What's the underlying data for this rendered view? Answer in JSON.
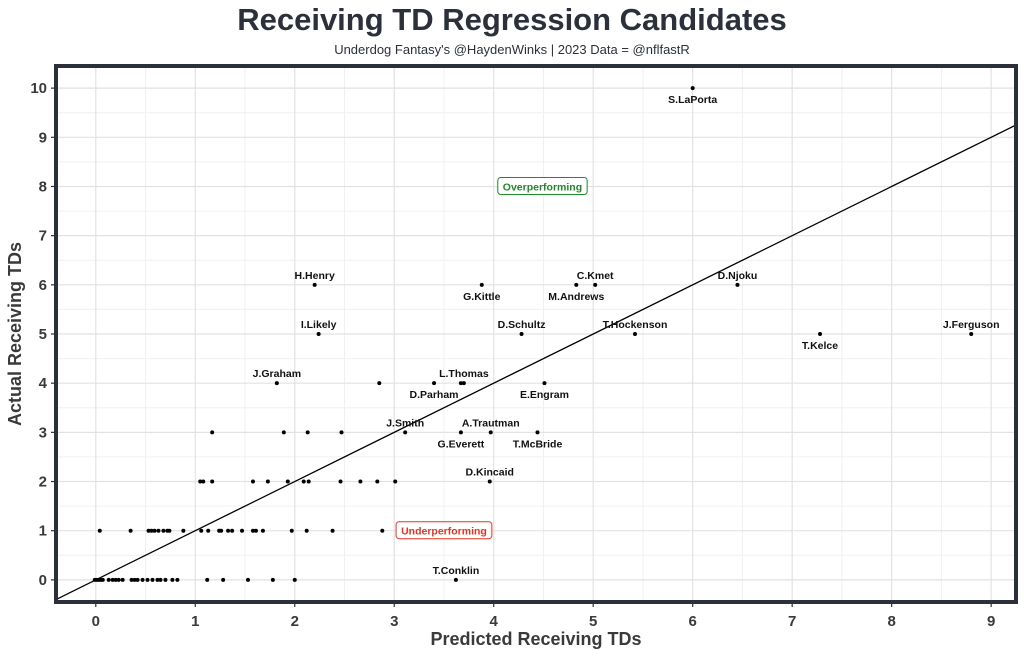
{
  "title": "Receiving TD Regression Candidates",
  "subtitle": "Underdog Fantasy's @HaydenWinks | 2023 Data = @nflfastR",
  "chart_data": {
    "type": "scatter",
    "xlabel": "Predicted Receiving TDs",
    "ylabel": "Actual Receiving TDs",
    "xlim": [
      -0.4,
      9.25
    ],
    "ylim": [
      -0.45,
      10.45
    ],
    "xticks": [
      "0",
      "1",
      "2",
      "3",
      "4",
      "5",
      "6",
      "7",
      "8",
      "9"
    ],
    "yticks": [
      "0",
      "1",
      "2",
      "3",
      "4",
      "5",
      "6",
      "7",
      "8",
      "9",
      "10"
    ],
    "grid": true,
    "reference_line": {
      "slope": 1,
      "intercept": 0
    },
    "labeled_points": [
      {
        "name": "S.LaPorta",
        "x": 6.0,
        "y": 10
      },
      {
        "name": "H.Henry",
        "x": 2.2,
        "y": 6
      },
      {
        "name": "G.Kittle",
        "x": 3.88,
        "y": 6
      },
      {
        "name": "M.Andrews",
        "x": 4.83,
        "y": 6
      },
      {
        "name": "C.Kmet",
        "x": 5.02,
        "y": 6
      },
      {
        "name": "D.Njoku",
        "x": 6.45,
        "y": 6
      },
      {
        "name": "I.Likely",
        "x": 2.24,
        "y": 5
      },
      {
        "name": "D.Schultz",
        "x": 4.28,
        "y": 5
      },
      {
        "name": "T.Hockenson",
        "x": 5.42,
        "y": 5
      },
      {
        "name": "T.Kelce",
        "x": 7.28,
        "y": 5
      },
      {
        "name": "J.Ferguson",
        "x": 8.8,
        "y": 5
      },
      {
        "name": "J.Graham",
        "x": 1.82,
        "y": 4
      },
      {
        "name": "D.Parham",
        "x": 3.4,
        "y": 4
      },
      {
        "name": "L.Thomas",
        "x": 3.7,
        "y": 4
      },
      {
        "name": "E.Engram",
        "x": 4.51,
        "y": 4
      },
      {
        "name": "J.Smith",
        "x": 3.11,
        "y": 3
      },
      {
        "name": "G.Everett",
        "x": 3.67,
        "y": 3
      },
      {
        "name": "A.Trautman",
        "x": 3.97,
        "y": 3
      },
      {
        "name": "T.McBride",
        "x": 4.44,
        "y": 3
      },
      {
        "name": "D.Kincaid",
        "x": 3.96,
        "y": 2
      },
      {
        "name": "T.Conklin",
        "x": 3.62,
        "y": 0
      }
    ],
    "points": [
      {
        "x": 2.85,
        "y": 4
      },
      {
        "x": 3.67,
        "y": 4
      },
      {
        "x": 1.17,
        "y": 3
      },
      {
        "x": 1.89,
        "y": 3
      },
      {
        "x": 2.13,
        "y": 3
      },
      {
        "x": 2.47,
        "y": 3
      },
      {
        "x": 1.05,
        "y": 2
      },
      {
        "x": 1.08,
        "y": 2
      },
      {
        "x": 1.17,
        "y": 2
      },
      {
        "x": 1.58,
        "y": 2
      },
      {
        "x": 1.73,
        "y": 2
      },
      {
        "x": 1.93,
        "y": 2
      },
      {
        "x": 2.09,
        "y": 2
      },
      {
        "x": 2.14,
        "y": 2
      },
      {
        "x": 2.46,
        "y": 2
      },
      {
        "x": 2.66,
        "y": 2
      },
      {
        "x": 2.83,
        "y": 2
      },
      {
        "x": 3.01,
        "y": 2
      },
      {
        "x": 0.04,
        "y": 1
      },
      {
        "x": 0.35,
        "y": 1
      },
      {
        "x": 0.53,
        "y": 1
      },
      {
        "x": 0.56,
        "y": 1
      },
      {
        "x": 0.59,
        "y": 1
      },
      {
        "x": 0.63,
        "y": 1
      },
      {
        "x": 0.68,
        "y": 1
      },
      {
        "x": 0.72,
        "y": 1
      },
      {
        "x": 0.74,
        "y": 1
      },
      {
        "x": 0.88,
        "y": 1
      },
      {
        "x": 1.06,
        "y": 1
      },
      {
        "x": 1.13,
        "y": 1
      },
      {
        "x": 1.24,
        "y": 1
      },
      {
        "x": 1.26,
        "y": 1
      },
      {
        "x": 1.33,
        "y": 1
      },
      {
        "x": 1.37,
        "y": 1
      },
      {
        "x": 1.47,
        "y": 1
      },
      {
        "x": 1.58,
        "y": 1
      },
      {
        "x": 1.61,
        "y": 1
      },
      {
        "x": 1.68,
        "y": 1
      },
      {
        "x": 1.97,
        "y": 1
      },
      {
        "x": 2.12,
        "y": 1
      },
      {
        "x": 2.38,
        "y": 1
      },
      {
        "x": 2.88,
        "y": 1
      },
      {
        "x": -0.01,
        "y": 0
      },
      {
        "x": 0.01,
        "y": 0
      },
      {
        "x": 0.03,
        "y": 0
      },
      {
        "x": 0.05,
        "y": 0
      },
      {
        "x": 0.07,
        "y": 0
      },
      {
        "x": 0.13,
        "y": 0
      },
      {
        "x": 0.17,
        "y": 0
      },
      {
        "x": 0.2,
        "y": 0
      },
      {
        "x": 0.23,
        "y": 0
      },
      {
        "x": 0.27,
        "y": 0
      },
      {
        "x": 0.36,
        "y": 0
      },
      {
        "x": 0.39,
        "y": 0
      },
      {
        "x": 0.42,
        "y": 0
      },
      {
        "x": 0.47,
        "y": 0
      },
      {
        "x": 0.52,
        "y": 0
      },
      {
        "x": 0.57,
        "y": 0
      },
      {
        "x": 0.62,
        "y": 0
      },
      {
        "x": 0.65,
        "y": 0
      },
      {
        "x": 0.7,
        "y": 0
      },
      {
        "x": 0.77,
        "y": 0
      },
      {
        "x": 0.82,
        "y": 0
      },
      {
        "x": 1.12,
        "y": 0
      },
      {
        "x": 1.28,
        "y": 0
      },
      {
        "x": 1.53,
        "y": 0
      },
      {
        "x": 1.78,
        "y": 0
      },
      {
        "x": 2.0,
        "y": 0
      }
    ],
    "annotations": [
      {
        "text": "Overperforming",
        "x": 4.49,
        "y": 8,
        "color": "#1e8a28"
      },
      {
        "text": "Underperforming",
        "x": 3.5,
        "y": 1,
        "color": "#e8321e"
      }
    ]
  }
}
